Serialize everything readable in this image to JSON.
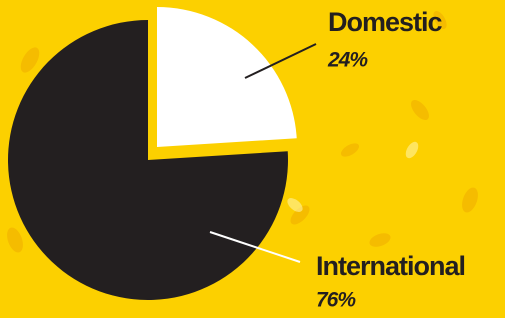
{
  "chart_data": {
    "type": "pie",
    "categories": [
      "Domestic",
      "International"
    ],
    "values": [
      24,
      76
    ],
    "value_labels": [
      "24%",
      "76%"
    ],
    "colors": [
      "#ffffff",
      "#231f20"
    ]
  }
}
